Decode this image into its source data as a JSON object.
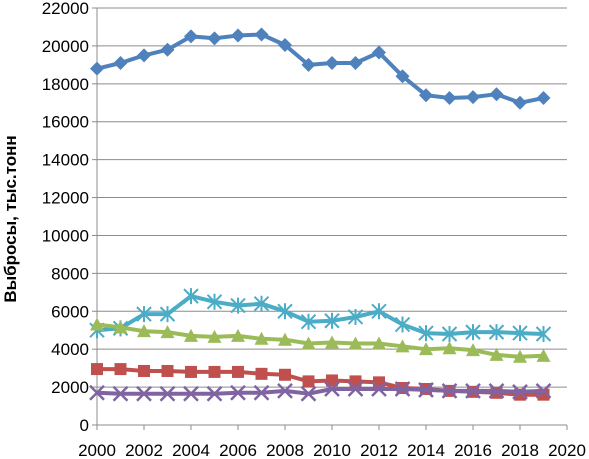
{
  "chart_data": {
    "type": "line",
    "title": "",
    "xlabel": "",
    "ylabel": "Выбросы, тыс.тонн",
    "xlim": [
      2000,
      2020
    ],
    "ylim": [
      0,
      22000
    ],
    "x_ticks": [
      2000,
      2002,
      2004,
      2006,
      2008,
      2010,
      2012,
      2014,
      2016,
      2018,
      2020
    ],
    "y_ticks": [
      0,
      2000,
      4000,
      6000,
      8000,
      10000,
      12000,
      14000,
      16000,
      18000,
      20000,
      22000
    ],
    "grid": "horizontal",
    "x": [
      2000,
      2001,
      2002,
      2003,
      2004,
      2005,
      2006,
      2007,
      2008,
      2009,
      2010,
      2011,
      2012,
      2013,
      2014,
      2015,
      2016,
      2017,
      2018,
      2019
    ],
    "series": [
      {
        "color": "#4f81bd",
        "marker": "diamond",
        "values": [
          18800,
          19100,
          19500,
          19800,
          20500,
          20400,
          20550,
          20600,
          20050,
          19000,
          19100,
          19100,
          19650,
          18400,
          17400,
          17250,
          17300,
          17450,
          17000,
          17250
        ]
      },
      {
        "color": "#4bacc6",
        "marker": "asterisk",
        "values": [
          5000,
          5100,
          5850,
          5850,
          6800,
          6500,
          6300,
          6400,
          6000,
          5450,
          5500,
          5700,
          6000,
          5300,
          4850,
          4800,
          4900,
          4900,
          4850,
          4800
        ]
      },
      {
        "color": "#9bbb59",
        "marker": "triangle",
        "values": [
          5300,
          5150,
          4950,
          4900,
          4700,
          4650,
          4700,
          4550,
          4500,
          4300,
          4350,
          4300,
          4300,
          4150,
          4000,
          4050,
          3950,
          3700,
          3600,
          3650
        ]
      },
      {
        "color": "#c0504d",
        "marker": "square",
        "values": [
          2950,
          2950,
          2850,
          2850,
          2800,
          2800,
          2800,
          2700,
          2650,
          2300,
          2350,
          2300,
          2250,
          1950,
          1900,
          1800,
          1750,
          1700,
          1600,
          1600
        ]
      },
      {
        "color": "#8064a2",
        "marker": "x",
        "values": [
          1700,
          1650,
          1650,
          1650,
          1650,
          1650,
          1700,
          1700,
          1800,
          1650,
          1900,
          1900,
          1900,
          1900,
          1850,
          1800,
          1800,
          1800,
          1750,
          1800
        ]
      }
    ]
  }
}
